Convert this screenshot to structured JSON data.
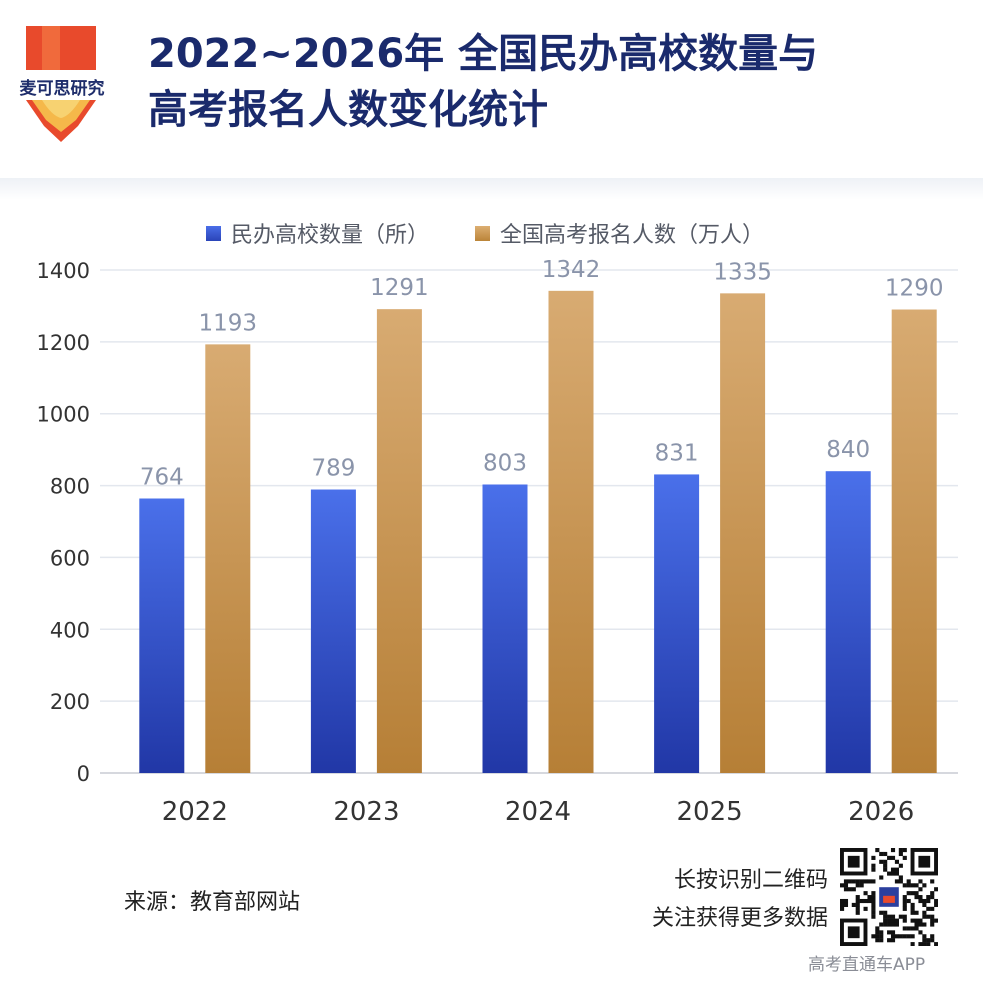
{
  "brand": {
    "logo_text": "麦可思研究",
    "logo_colors": [
      "#e84a2c",
      "#f2b33d"
    ]
  },
  "title": {
    "line1": "2022~2026年  全国民办高校数量与",
    "line2": "高考报名人数变化统计"
  },
  "source": "来源：教育部网站",
  "qr": {
    "line1": "长按识别二维码",
    "line2": "关注获得更多数据"
  },
  "app_credit": "高考直通车APP",
  "chart_data": {
    "type": "bar",
    "categories": [
      "2022",
      "2023",
      "2024",
      "2025",
      "2026"
    ],
    "series": [
      {
        "name": "民办高校数量（所）",
        "values": [
          764,
          789,
          803,
          831,
          840
        ],
        "color": "#3f62dd"
      },
      {
        "name": "全国高考报名人数（万人）",
        "values": [
          1193,
          1291,
          1342,
          1335,
          1290
        ],
        "color": "#c9954f"
      }
    ],
    "yticks": [
      0,
      200,
      400,
      600,
      800,
      1000,
      1200,
      1400
    ],
    "ylim": [
      0,
      1400
    ],
    "grid": true,
    "legend": "top"
  }
}
